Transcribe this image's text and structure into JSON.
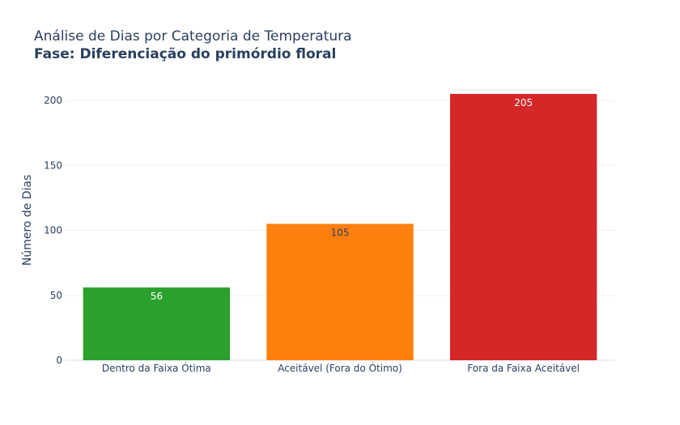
{
  "chart_data": {
    "type": "bar",
    "title": "Análise de Dias por Categoria de Temperatura",
    "subtitle": "Fase: Diferenciação do primórdio floral",
    "xlabel": "",
    "ylabel": "Número de Dias",
    "categories": [
      "Dentro da Faixa Ótima",
      "Aceitável (Fora do Ótimo)",
      "Fora da Faixa Aceitável"
    ],
    "values": [
      56,
      105,
      205
    ],
    "data_labels": [
      "56",
      "105",
      "205"
    ],
    "colors": [
      "#2ca02c",
      "#ff7f0e",
      "#d62728"
    ],
    "label_colors": [
      "#ffffff",
      "#2a3f5f",
      "#ffffff"
    ],
    "ylim": [
      0,
      215
    ],
    "yticks": [
      0,
      50,
      100,
      150,
      200
    ],
    "ytick_labels": [
      "0",
      "50",
      "100",
      "150",
      "200"
    ],
    "grid": true,
    "legend": "none"
  }
}
